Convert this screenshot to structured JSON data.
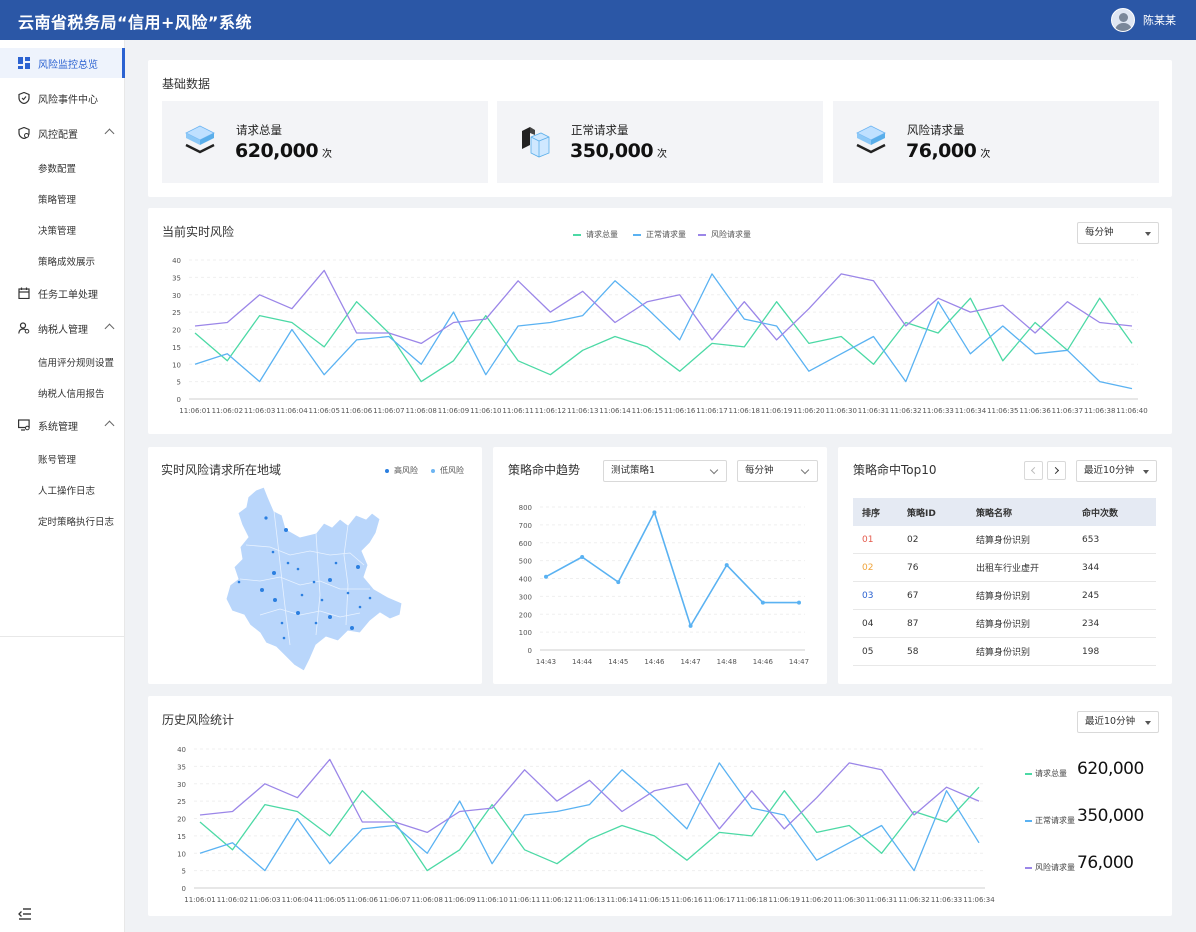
{
  "header": {
    "title": "云南省税务局“信用+风险”系统",
    "user": "陈某某"
  },
  "sidebar": {
    "items": [
      {
        "label": "风险监控总览",
        "icon": "dashboard-icon",
        "active": true
      },
      {
        "label": "风险事件中心",
        "icon": "shield-icon"
      },
      {
        "label": "风控配置",
        "icon": "shield-gear-icon",
        "expanded": true,
        "children": [
          "参数配置",
          "策略管理",
          "决策管理",
          "策略成效展示"
        ]
      },
      {
        "label": "任务工单处理",
        "icon": "calendar-icon"
      },
      {
        "label": "纳税人管理",
        "icon": "user-gear-icon",
        "expanded": true,
        "children": [
          "信用评分规则设置",
          "纳税人信用报告"
        ]
      },
      {
        "label": "系统管理",
        "icon": "monitor-gear-icon",
        "expanded": true,
        "children": [
          "账号管理",
          "人工操作日志",
          "定时策略执行日志"
        ]
      }
    ]
  },
  "basic": {
    "title": "基础数据",
    "stats": [
      {
        "label": "请求总量",
        "value": "620,000",
        "unit": "次"
      },
      {
        "label": "正常请求量",
        "value": "350,000",
        "unit": "次"
      },
      {
        "label": "风险请求量",
        "value": "76,000",
        "unit": "次"
      }
    ]
  },
  "realtime": {
    "title": "当前实时风险",
    "select": "每分钟"
  },
  "region": {
    "title": "实时风险请求所在地域",
    "legend": [
      "高风险",
      "低风险"
    ]
  },
  "trend": {
    "title": "策略命中趋势",
    "strategy_select": "测试策略1",
    "interval_select": "每分钟"
  },
  "top10": {
    "title": "策略命中Top10",
    "select": "最近10分钟",
    "headers": [
      "排序",
      "策略ID",
      "策略名称",
      "命中次数"
    ],
    "rows": [
      {
        "rank": "01",
        "id": "02",
        "name": "结算身份识别",
        "hits": "653"
      },
      {
        "rank": "02",
        "id": "76",
        "name": "出租车行业虚开",
        "hits": "344"
      },
      {
        "rank": "03",
        "id": "67",
        "name": "结算身份识别",
        "hits": "245"
      },
      {
        "rank": "04",
        "id": "87",
        "name": "结算身份识别",
        "hits": "234"
      },
      {
        "rank": "05",
        "id": "58",
        "name": "结算身份识别",
        "hits": "198"
      }
    ]
  },
  "history": {
    "title": "历史风险统计",
    "select": "最近10分钟",
    "legend": [
      {
        "name": "请求总量",
        "value": "620,000"
      },
      {
        "name": "正常请求量",
        "value": "350,000"
      },
      {
        "name": "风险请求量",
        "value": "76,000"
      }
    ]
  },
  "colors": {
    "total": "#4cd9a5",
    "normal": "#5ab2f2",
    "risk": "#9b86e8",
    "accent": "#2b62d1",
    "rank1": "#e45a4c",
    "rank2": "#f0a43a",
    "rank3": "#2b62d1"
  },
  "chart_data": [
    {
      "type": "line",
      "name": "当前实时风险",
      "categories": [
        "11:06:01",
        "11:06:02",
        "11:06:03",
        "11:06:04",
        "11:06:05",
        "11:06:06",
        "11:06:07",
        "11:06:08",
        "11:06:09",
        "11:06:10",
        "11:06:11",
        "11:06:12",
        "11:06:13",
        "11:06:14",
        "11:06:15",
        "11:06:16",
        "11:06:17",
        "11:06:18",
        "11:06:19",
        "11:06:20",
        "11:06:30",
        "11:06:31",
        "11:06:32",
        "11:06:33",
        "11:06:34",
        "11:06:35",
        "11:06:36",
        "11:06:37",
        "11:06:38",
        "11:06:40"
      ],
      "ylim": [
        0,
        40
      ],
      "yticks": [
        0,
        5,
        10,
        15,
        20,
        25,
        30,
        35,
        40
      ],
      "legend": "top-center",
      "series": [
        {
          "name": "请求总量",
          "values": [
            19,
            11,
            24,
            22,
            15,
            28,
            19,
            5,
            11,
            24,
            11,
            7,
            14,
            18,
            15,
            8,
            16,
            15,
            28,
            16,
            18,
            10,
            22,
            19,
            29,
            11,
            22,
            14,
            29,
            16
          ]
        },
        {
          "name": "正常请求量",
          "values": [
            10,
            13,
            5,
            20,
            7,
            17,
            18,
            10,
            25,
            7,
            21,
            22,
            24,
            34,
            26,
            17,
            36,
            23,
            21,
            8,
            13,
            18,
            5,
            28,
            13,
            21,
            13,
            14,
            5,
            3
          ]
        },
        {
          "name": "风险请求量",
          "values": [
            21,
            22,
            30,
            26,
            37,
            19,
            19,
            16,
            22,
            23,
            34,
            25,
            31,
            22,
            28,
            30,
            17,
            28,
            17,
            26,
            36,
            34,
            21,
            29,
            25,
            27,
            19,
            28,
            22,
            21
          ]
        }
      ]
    },
    {
      "type": "line",
      "name": "策略命中趋势",
      "categories": [
        "14:43",
        "14:44",
        "14:45",
        "14:46",
        "14:47",
        "14:48",
        "14:46",
        "14:47"
      ],
      "ylim": [
        0,
        800
      ],
      "yticks": [
        0,
        100,
        200,
        300,
        400,
        500,
        600,
        700,
        800
      ],
      "series": [
        {
          "name": "测试策略1",
          "values": [
            410,
            520,
            380,
            770,
            135,
            475,
            265,
            265
          ]
        }
      ]
    },
    {
      "type": "line",
      "name": "历史风险统计",
      "categories": [
        "11:06:01",
        "11:06:02",
        "11:06:03",
        "11:06:04",
        "11:06:05",
        "11:06:06",
        "11:06:07",
        "11:06:08",
        "11:06:09",
        "11:06:10",
        "11:06:11",
        "11:06:12",
        "11:06:13",
        "11:06:14",
        "11:06:15",
        "11:06:16",
        "11:06:17",
        "11:06:18",
        "11:06:19",
        "11:06:20",
        "11:06:30",
        "11:06:31",
        "11:06:32",
        "11:06:33",
        "11:06:34"
      ],
      "ylim": [
        0,
        40
      ],
      "yticks": [
        0,
        5,
        10,
        15,
        20,
        25,
        30,
        35,
        40
      ],
      "legend": "right",
      "series": [
        {
          "name": "请求总量",
          "values": [
            19,
            11,
            24,
            22,
            15,
            28,
            19,
            5,
            11,
            24,
            11,
            7,
            14,
            18,
            15,
            8,
            16,
            15,
            28,
            16,
            18,
            10,
            22,
            19,
            29
          ]
        },
        {
          "name": "正常请求量",
          "values": [
            10,
            13,
            5,
            20,
            7,
            17,
            18,
            10,
            25,
            7,
            21,
            22,
            24,
            34,
            26,
            17,
            36,
            23,
            21,
            8,
            13,
            18,
            5,
            28,
            13
          ]
        },
        {
          "name": "风险请求量",
          "values": [
            21,
            22,
            30,
            26,
            37,
            19,
            19,
            16,
            22,
            23,
            34,
            25,
            31,
            22,
            28,
            30,
            17,
            28,
            17,
            26,
            36,
            34,
            21,
            29,
            25
          ]
        }
      ]
    }
  ]
}
